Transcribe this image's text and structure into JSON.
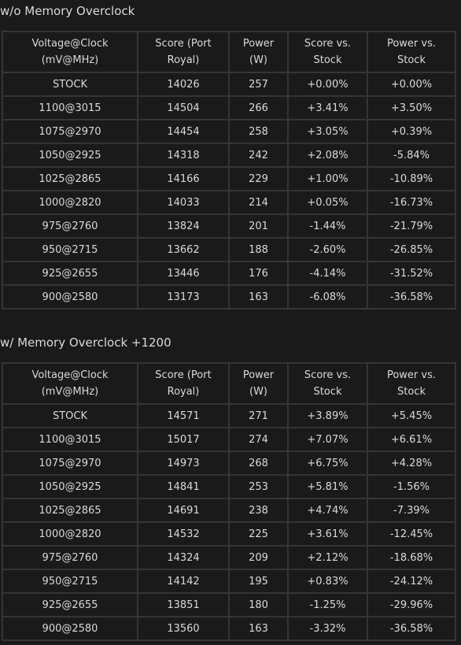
{
  "sections": [
    {
      "title": "w/o Memory Overclock",
      "headers": [
        [
          "Voltage@Clock",
          "(mV@MHz)"
        ],
        [
          "Score (Port",
          "Royal)"
        ],
        [
          "Power",
          "(W)"
        ],
        [
          "Score vs.",
          "Stock"
        ],
        [
          "Power vs.",
          "Stock"
        ]
      ],
      "rows": [
        [
          "STOCK",
          "14026",
          "257",
          "+0.00%",
          "+0.00%"
        ],
        [
          "1100@3015",
          "14504",
          "266",
          "+3.41%",
          "+3.50%"
        ],
        [
          "1075@2970",
          "14454",
          "258",
          "+3.05%",
          "+0.39%"
        ],
        [
          "1050@2925",
          "14318",
          "242",
          "+2.08%",
          "-5.84%"
        ],
        [
          "1025@2865",
          "14166",
          "229",
          "+1.00%",
          "-10.89%"
        ],
        [
          "1000@2820",
          "14033",
          "214",
          "+0.05%",
          "-16.73%"
        ],
        [
          "975@2760",
          "13824",
          "201",
          "-1.44%",
          "-21.79%"
        ],
        [
          "950@2715",
          "13662",
          "188",
          "-2.60%",
          "-26.85%"
        ],
        [
          "925@2655",
          "13446",
          "176",
          "-4.14%",
          "-31.52%"
        ],
        [
          "900@2580",
          "13173",
          "163",
          "-6.08%",
          "-36.58%"
        ]
      ]
    },
    {
      "title": "w/ Memory Overclock +1200",
      "headers": [
        [
          "Voltage@Clock",
          "(mV@MHz)"
        ],
        [
          "Score (Port",
          "Royal)"
        ],
        [
          "Power",
          "(W)"
        ],
        [
          "Score vs.",
          "Stock"
        ],
        [
          "Power vs.",
          "Stock"
        ]
      ],
      "rows": [
        [
          "STOCK",
          "14571",
          "271",
          "+3.89%",
          "+5.45%"
        ],
        [
          "1100@3015",
          "15017",
          "274",
          "+7.07%",
          "+6.61%"
        ],
        [
          "1075@2970",
          "14973",
          "268",
          "+6.75%",
          "+4.28%"
        ],
        [
          "1050@2925",
          "14841",
          "253",
          "+5.81%",
          "-1.56%"
        ],
        [
          "1025@2865",
          "14691",
          "238",
          "+4.74%",
          "-7.39%"
        ],
        [
          "1000@2820",
          "14532",
          "225",
          "+3.61%",
          "-12.45%"
        ],
        [
          "975@2760",
          "14324",
          "209",
          "+2.12%",
          "-18.68%"
        ],
        [
          "950@2715",
          "14142",
          "195",
          "+0.83%",
          "-24.12%"
        ],
        [
          "925@2655",
          "13851",
          "180",
          "-1.25%",
          "-29.96%"
        ],
        [
          "900@2580",
          "13560",
          "163",
          "-3.32%",
          "-36.58%"
        ]
      ]
    }
  ]
}
